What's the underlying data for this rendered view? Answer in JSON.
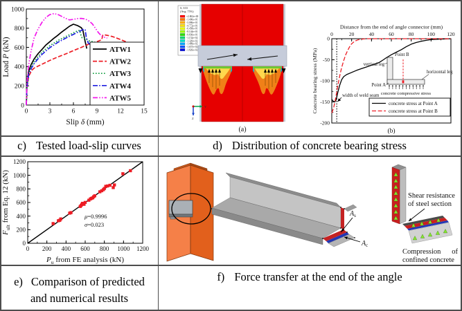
{
  "figure": {
    "captions": {
      "c": {
        "label": "c)",
        "text": "Tested load-slip curves"
      },
      "d": {
        "label": "d)",
        "text": "Distribution of concrete bearing stress"
      },
      "e": {
        "label": "e)",
        "line1": "Comparison of predicted",
        "line2": "and numerical results"
      },
      "f": {
        "label": "f)",
        "text": "Force transfer at the end of the angle"
      }
    },
    "panel_labels": {
      "a": "(a)",
      "b": "(b)"
    }
  },
  "fe_contour": {
    "legend_title": [
      "S, S33",
      "(Avg: 75%)"
    ],
    "legend_values": [
      "+2.862e+00",
      "-1.400e+01",
      "-3.086e+01",
      "-4.772e+01",
      "-6.458e+01",
      "-8.144e+01",
      "-9.830e+01",
      "-1.152e+02",
      "-1.320e+02",
      "-1.489e+02",
      "-1.657e+02",
      "-1.826e+02"
    ],
    "legend_colors": [
      "#ff0000",
      "#ff7300",
      "#ffab00",
      "#ffe100",
      "#e8ff00",
      "#9dff00",
      "#27e000",
      "#00d66e",
      "#00e0c8",
      "#00a5ff",
      "#0055ff",
      "#0008e0"
    ],
    "axis_triad": {
      "horizontal": "Y",
      "vertical": "Z"
    }
  },
  "chart_data": [
    {
      "id": "load-slip",
      "type": "line",
      "xlabel": "Slip *δ* (mm)",
      "ylabel": "Load *P* (kN)",
      "xlim": [
        0,
        15
      ],
      "ylim": [
        0,
        1000
      ],
      "xticks": [
        0,
        3,
        6,
        9,
        12,
        15
      ],
      "yticks": [
        0,
        200,
        400,
        600,
        800,
        1000
      ],
      "legend_position": "lower right",
      "series": [
        {
          "name": "ATW1",
          "color": "#000000",
          "style": "solid",
          "x": [
            0,
            0.08,
            0.3,
            0.6,
            1,
            1.5,
            2,
            2.5,
            3,
            3.5,
            4,
            4.5,
            5,
            5.5,
            6,
            6.5,
            7,
            7.2,
            7.5,
            7.7
          ],
          "y": [
            0,
            200,
            350,
            420,
            480,
            535,
            580,
            625,
            660,
            695,
            725,
            760,
            790,
            820,
            842,
            828,
            806,
            780,
            660,
            588
          ]
        },
        {
          "name": "ATW2",
          "color": "#ed1c24",
          "style": "dash",
          "x": [
            0,
            0.08,
            0.3,
            0.7,
            1,
            1.5,
            2,
            3,
            4,
            5,
            6,
            7,
            8,
            9,
            9.6,
            9.75,
            10,
            10.5,
            11,
            12,
            13,
            13.6,
            14
          ],
          "y": [
            0,
            175,
            300,
            362,
            385,
            406,
            425,
            465,
            500,
            532,
            567,
            600,
            636,
            660,
            680,
            728,
            730,
            722,
            712,
            682,
            648,
            618,
            572
          ]
        },
        {
          "name": "ATW3",
          "color": "#0a9b3a",
          "style": "dot",
          "x": [
            0,
            0.08,
            0.3,
            0.7,
            1,
            1.5,
            2,
            3,
            4,
            5,
            6,
            6.5,
            6.8,
            6.9,
            7.1,
            7.5,
            8,
            9,
            9.5,
            10.1
          ],
          "y": [
            0,
            185,
            330,
            408,
            450,
            505,
            550,
            618,
            670,
            712,
            752,
            772,
            778,
            740,
            700,
            692,
            668,
            648,
            640,
            632
          ]
        },
        {
          "name": "ATW4",
          "color": "#1d1de0",
          "style": "dashdot",
          "x": [
            0,
            0.08,
            0.3,
            0.7,
            1,
            1.5,
            2,
            3,
            4,
            5,
            6,
            6.5,
            7,
            7.3,
            7.5,
            7.65,
            7.9,
            8.3,
            9,
            9.6,
            10.2
          ],
          "y": [
            0,
            180,
            318,
            392,
            430,
            483,
            528,
            598,
            652,
            696,
            736,
            756,
            776,
            790,
            782,
            698,
            645,
            622,
            612,
            609,
            606
          ]
        },
        {
          "name": "ATW5",
          "color": "#f318ec",
          "style": "dashdotdot",
          "x": [
            0,
            0.08,
            0.3,
            0.6,
            1,
            1.5,
            2,
            2.5,
            3,
            3.5,
            4,
            4.5,
            5,
            5.5,
            6,
            6.5,
            7,
            7.5,
            8,
            8.4,
            8.8,
            9.2,
            9.6,
            10,
            10.3
          ],
          "y": [
            0,
            240,
            420,
            560,
            700,
            792,
            862,
            912,
            942,
            952,
            944,
            924,
            902,
            886,
            892,
            900,
            902,
            896,
            874,
            846,
            800,
            752,
            718,
            704,
            698
          ]
        }
      ]
    },
    {
      "id": "bearing-stress",
      "type": "line",
      "xlabel": "Distance from the end of angle connector (mm)",
      "ylabel": "Concrete bearing stress (MPa)",
      "xlim": [
        0,
        120
      ],
      "ylim": [
        -200,
        0
      ],
      "xticks": [
        0,
        20,
        40,
        60,
        80,
        100,
        120
      ],
      "yticks": [
        0,
        -50,
        -100,
        -150,
        -200
      ],
      "x_axis": "top",
      "vline": {
        "x": 5,
        "label": "width of weld seam"
      },
      "series": [
        {
          "name": "concrete stress at Point A",
          "color": "#000000",
          "style": "solid",
          "x": [
            0,
            1,
            2,
            3,
            4,
            5,
            6,
            8,
            10,
            12,
            15,
            20,
            25,
            30,
            35,
            40,
            45,
            48,
            52,
            55,
            60,
            65,
            70,
            75,
            80,
            85,
            90,
            95,
            100,
            110,
            120
          ],
          "y": [
            -144,
            -147,
            -149,
            -150,
            -147,
            -139,
            -128,
            -110,
            -97,
            -90,
            -85,
            -80,
            -75,
            -71,
            -67,
            -63,
            -59,
            -56,
            -50,
            -45,
            -38,
            -32,
            -26,
            -19,
            -13,
            -9,
            -6,
            -4,
            -2,
            -1,
            0
          ]
        },
        {
          "name": "concrete stress at Point B",
          "color": "#ed1c24",
          "style": "dash",
          "x": [
            0,
            1,
            2,
            3,
            4,
            5,
            6,
            8,
            10,
            12,
            14,
            16,
            18,
            20,
            23,
            26,
            30,
            35,
            40,
            60,
            80,
            100,
            120
          ],
          "y": [
            -176,
            -170,
            -162,
            -152,
            -140,
            -126,
            -112,
            -88,
            -68,
            -52,
            -38,
            -28,
            -19,
            -12,
            -6,
            -3,
            -1,
            0,
            0,
            0,
            0,
            0,
            0
          ]
        }
      ],
      "inset": {
        "labels": {
          "point_b": "Point B",
          "vertical_leg": "vertical leg",
          "horizontal_leg": "horizontal leg",
          "point_a": "Point A",
          "stress": "concrete compressive stress"
        }
      }
    },
    {
      "id": "comparison",
      "type": "scatter",
      "xlabel": "*P*~u~ from FE analysis (kN)",
      "ylabel": "*F*~ult~ from Eq. 12 (kN)",
      "xlim": [
        0,
        1200
      ],
      "ylim": [
        0,
        1200
      ],
      "xticks": [
        0,
        200,
        400,
        600,
        800,
        1000,
        1200
      ],
      "yticks": [
        0,
        200,
        400,
        600,
        800,
        1000,
        1200
      ],
      "marker_color": "#ed1c24",
      "line": {
        "x": [
          0,
          1200
        ],
        "y": [
          0,
          1200
        ],
        "color": "#000000"
      },
      "points": [
        [
          265,
          290
        ],
        [
          320,
          332
        ],
        [
          335,
          338
        ],
        [
          345,
          358
        ],
        [
          438,
          443
        ],
        [
          452,
          452
        ],
        [
          548,
          542
        ],
        [
          558,
          556
        ],
        [
          565,
          572
        ],
        [
          572,
          588
        ],
        [
          588,
          574
        ],
        [
          600,
          601
        ],
        [
          638,
          634
        ],
        [
          654,
          652
        ],
        [
          665,
          661
        ],
        [
          678,
          668
        ],
        [
          688,
          684
        ],
        [
          700,
          699
        ],
        [
          753,
          758
        ],
        [
          773,
          773
        ],
        [
          790,
          789
        ],
        [
          800,
          806
        ],
        [
          815,
          838
        ],
        [
          833,
          843
        ],
        [
          858,
          853
        ],
        [
          893,
          820
        ],
        [
          905,
          858
        ],
        [
          993,
          1023
        ],
        [
          1072,
          1068
        ]
      ],
      "annotations": [
        "*μ*=0.9996",
        "*σ*=0.023"
      ]
    }
  ],
  "force_diagram": {
    "label_As": {
      "main": "A",
      "sub": "s"
    },
    "label_Ac": {
      "main": "A",
      "sub": "c"
    },
    "shear_label": [
      "Shear resistance",
      "of steel section"
    ],
    "compression_label": [
      "Compression",
      "of",
      "confined concrete"
    ]
  }
}
